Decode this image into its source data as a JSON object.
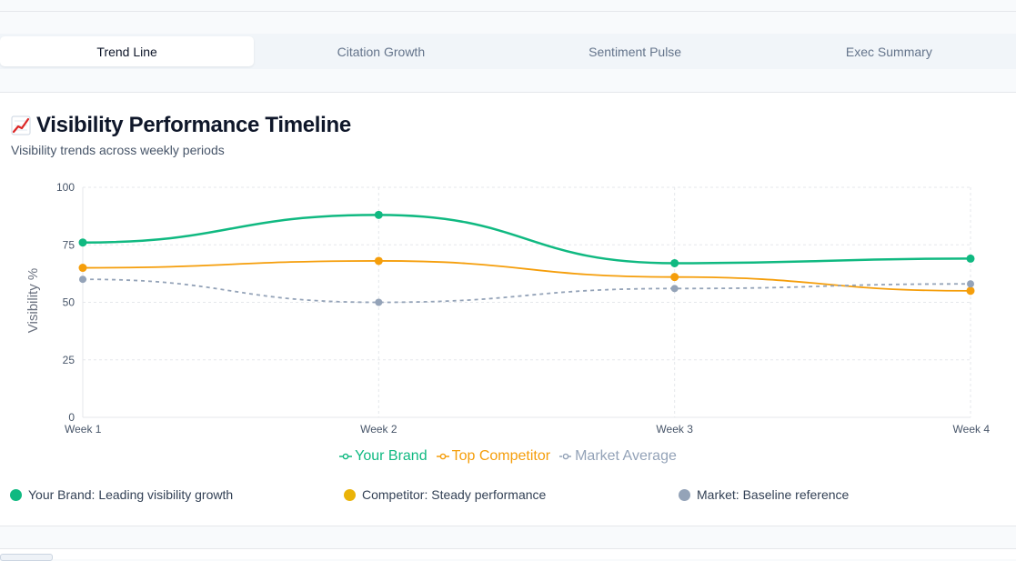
{
  "tabs": [
    {
      "label": "Trend Line",
      "active": true
    },
    {
      "label": "Citation Growth",
      "active": false
    },
    {
      "label": "Sentiment Pulse",
      "active": false
    },
    {
      "label": "Exec Summary",
      "active": false
    }
  ],
  "card": {
    "title_icon": "chart-increasing-icon",
    "title": "Visibility Performance Timeline",
    "subtitle": "Visibility trends across weekly periods"
  },
  "chart_data": {
    "type": "line",
    "categories": [
      "Week 1",
      "Week 2",
      "Week 3",
      "Week 4"
    ],
    "ylabel": "Visibility %",
    "ylim": [
      0,
      100
    ],
    "yticks": [
      "0",
      "25",
      "50",
      "75",
      "100"
    ],
    "grid": true,
    "legend_position": "bottom-center",
    "series": [
      {
        "name": "Your Brand",
        "values": [
          76,
          88,
          67,
          69
        ],
        "color": "#10b981",
        "dashed": false
      },
      {
        "name": "Top Competitor",
        "values": [
          65,
          68,
          61,
          55
        ],
        "color": "#f59e0b",
        "dashed": false
      },
      {
        "name": "Market Average",
        "values": [
          60,
          50,
          56,
          58
        ],
        "color": "#94a3b8",
        "dashed": true
      }
    ]
  },
  "notes": [
    {
      "text": "Your Brand: Leading visibility growth",
      "color": "#10b981"
    },
    {
      "text": "Competitor: Steady performance",
      "color": "#eab308"
    },
    {
      "text": "Market: Baseline reference",
      "color": "#94a3b8"
    }
  ]
}
